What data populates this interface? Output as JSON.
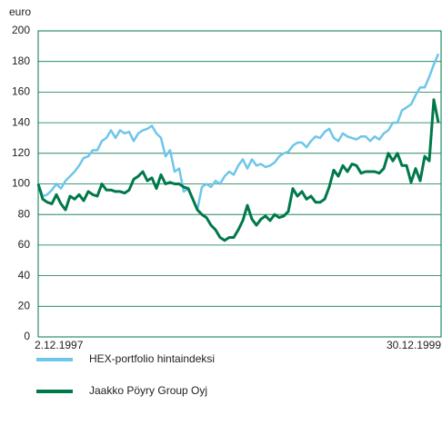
{
  "chart_data": {
    "type": "line",
    "ylabel": "euro",
    "categories": [
      "2.12.1997",
      null,
      null,
      null,
      null,
      null,
      null,
      null,
      null,
      null,
      null,
      null,
      null,
      null,
      null,
      null,
      null,
      null,
      null,
      null,
      null,
      null,
      null,
      null,
      null,
      null,
      null,
      null,
      null,
      null,
      null,
      null,
      null,
      null,
      null,
      null,
      null,
      null,
      null,
      null,
      null,
      null,
      null,
      null,
      null,
      null,
      null,
      null,
      null,
      null,
      null,
      null,
      null,
      null,
      null,
      null,
      null,
      null,
      null,
      null,
      null,
      null,
      null,
      null,
      null,
      null,
      null,
      null,
      null,
      null,
      null,
      null,
      null,
      null,
      null,
      null,
      null,
      null,
      null,
      null,
      null,
      null,
      null,
      null,
      null,
      null,
      null,
      null,
      "30.12.1999"
    ],
    "series": [
      {
        "name": "HEX-portfolio hintaindeksi",
        "color": "#6ec6ea",
        "values": [
          100,
          92,
          93,
          96,
          100,
          97,
          102,
          105,
          108,
          112,
          117,
          118,
          122,
          122,
          128,
          130,
          135,
          130,
          135,
          133,
          134,
          128,
          133,
          135,
          136,
          138,
          133,
          130,
          118,
          122,
          108,
          110,
          95,
          97,
          90,
          83,
          98,
          100,
          98,
          102,
          100,
          105,
          108,
          106,
          112,
          116,
          110,
          116,
          112,
          113,
          111,
          112,
          114,
          118,
          120,
          121,
          125,
          127,
          127,
          124,
          128,
          131,
          130,
          134,
          136,
          130,
          128,
          133,
          131,
          130,
          129,
          131,
          131,
          128,
          131,
          129,
          133,
          135,
          140,
          140,
          148,
          150,
          152,
          158,
          163,
          163,
          170,
          178,
          185
        ]
      },
      {
        "name": "Jaakko Pöyry Group Oyj",
        "color": "#00794a",
        "values": [
          100,
          90,
          88,
          87,
          93,
          87,
          83,
          92,
          90,
          93,
          89,
          95,
          93,
          92,
          100,
          96,
          96,
          95,
          95,
          94,
          96,
          103,
          105,
          108,
          102,
          104,
          97,
          106,
          100,
          101,
          100,
          100,
          98,
          97,
          90,
          83,
          80,
          78,
          73,
          70,
          65,
          63,
          65,
          65,
          70,
          76,
          86,
          77,
          73,
          77,
          79,
          76,
          80,
          78,
          79,
          82,
          97,
          92,
          95,
          90,
          92,
          88,
          88,
          90,
          98,
          109,
          105,
          112,
          108,
          113,
          112,
          107,
          108,
          108,
          108,
          107,
          110,
          120,
          115,
          120,
          112,
          112,
          101,
          110,
          102,
          118,
          115,
          155,
          140
        ]
      }
    ],
    "ylim": [
      0,
      200
    ],
    "yticks": [
      0,
      20,
      40,
      60,
      80,
      100,
      120,
      140,
      160,
      180,
      200
    ],
    "grid": true
  }
}
